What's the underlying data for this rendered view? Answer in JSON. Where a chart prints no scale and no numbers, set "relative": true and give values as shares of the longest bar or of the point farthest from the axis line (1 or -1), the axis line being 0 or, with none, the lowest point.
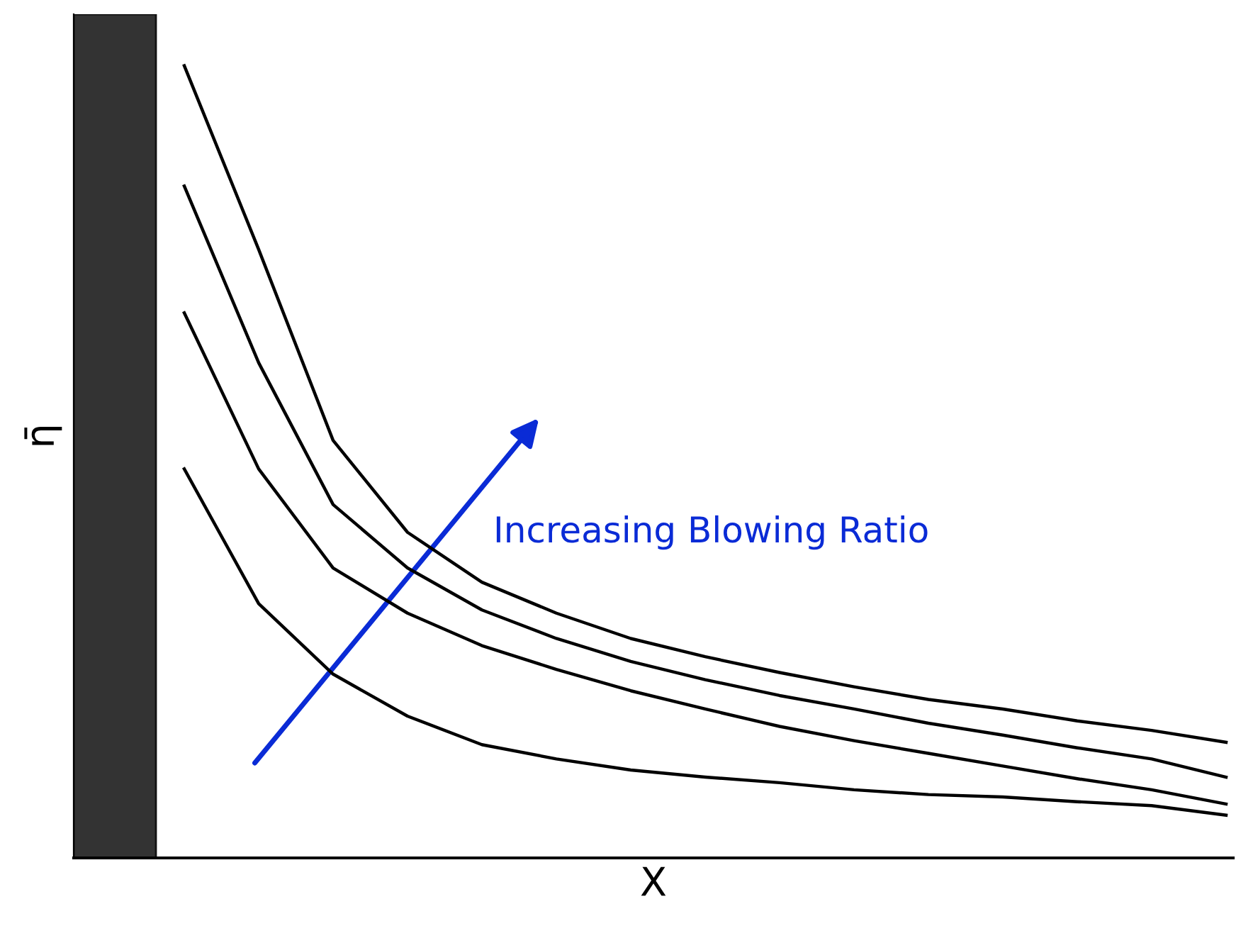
{
  "chart_data": {
    "type": "line",
    "relative": true,
    "xlabel": "X",
    "ylabel": "η̄",
    "annotations": [
      "Increasing Blowing Ratio"
    ],
    "categories": [
      null,
      null,
      null,
      null,
      null,
      null,
      null,
      null,
      null,
      null,
      null,
      null,
      null,
      null,
      null
    ],
    "series": [
      {
        "color": "#000000",
        "values": [
          1.0,
          0.768,
          0.527,
          0.411,
          0.348,
          0.309,
          0.277,
          0.254,
          0.234,
          0.216,
          0.2,
          0.188,
          0.173,
          0.161,
          0.146
        ]
      },
      {
        "color": "#000000",
        "values": [
          0.848,
          0.625,
          0.446,
          0.366,
          0.313,
          0.277,
          0.248,
          0.225,
          0.205,
          0.188,
          0.17,
          0.155,
          0.139,
          0.125,
          0.102
        ]
      },
      {
        "color": "#000000",
        "values": [
          0.688,
          0.491,
          0.366,
          0.309,
          0.268,
          0.238,
          0.211,
          0.188,
          0.166,
          0.148,
          0.132,
          0.116,
          0.1,
          0.086,
          0.068
        ]
      },
      {
        "color": "#000000",
        "values": [
          0.491,
          0.321,
          0.232,
          0.179,
          0.143,
          0.125,
          0.111,
          0.102,
          0.095,
          0.086,
          0.08,
          0.077,
          0.071,
          0.066,
          0.054
        ]
      }
    ],
    "legend": false,
    "marker": "none",
    "line_style": "solid",
    "tick_labels": false
  }
}
